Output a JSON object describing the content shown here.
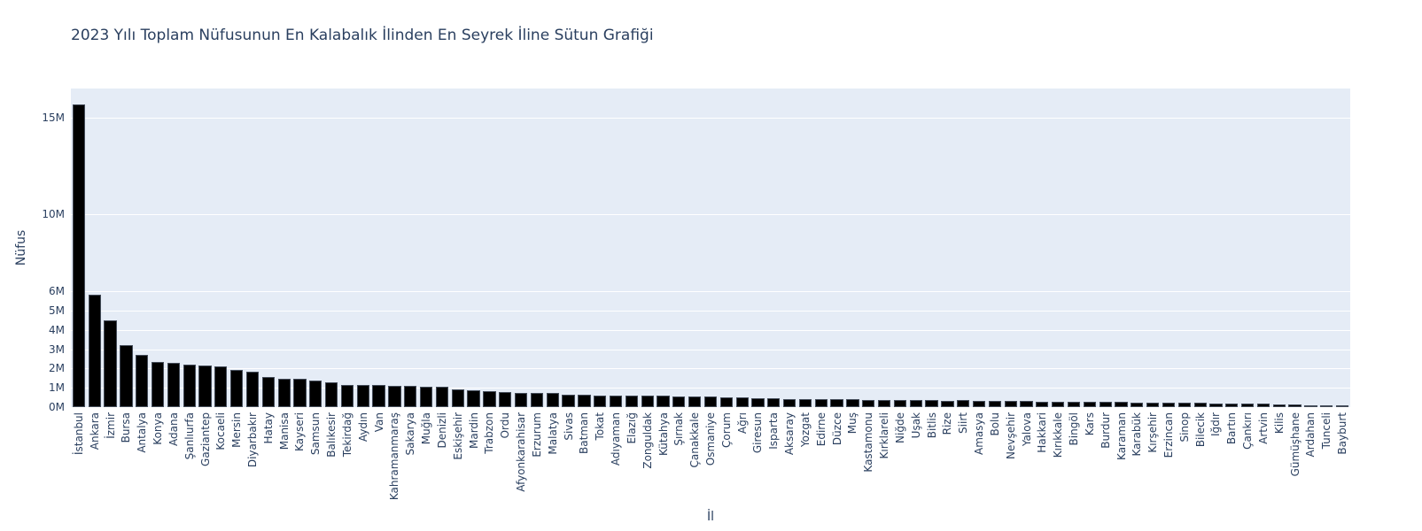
{
  "chart_data": {
    "type": "bar",
    "title": "2023 Yılı Toplam Nüfusunun En Kalabalık İlinden En Seyrek İline Sütun Grafiği",
    "xlabel": "İl",
    "ylabel": "Nüfus",
    "ylim": [
      0,
      16500000
    ],
    "y_ticks": [
      {
        "value": 0,
        "label": "0M"
      },
      {
        "value": 1000000,
        "label": "1M"
      },
      {
        "value": 2000000,
        "label": "2M"
      },
      {
        "value": 3000000,
        "label": "3M"
      },
      {
        "value": 4000000,
        "label": "4M"
      },
      {
        "value": 5000000,
        "label": "5M"
      },
      {
        "value": 6000000,
        "label": "6M"
      },
      {
        "value": 10000000,
        "label": "10M"
      },
      {
        "value": 15000000,
        "label": "15M"
      }
    ],
    "grid": true,
    "bar_color": "#000000",
    "plot_bgcolor": "#e5ecf6",
    "categories": [
      "İstanbul",
      "Ankara",
      "İzmir",
      "Bursa",
      "Antalya",
      "Konya",
      "Adana",
      "Şanlıurfa",
      "Gaziantep",
      "Kocaeli",
      "Mersin",
      "Diyarbakır",
      "Hatay",
      "Manisa",
      "Kayseri",
      "Samsun",
      "Balıkesir",
      "Tekirdağ",
      "Aydın",
      "Van",
      "Kahramanmaraş",
      "Sakarya",
      "Muğla",
      "Denizli",
      "Eskişehir",
      "Mardin",
      "Trabzon",
      "Ordu",
      "Afyonkarahisar",
      "Erzurum",
      "Malatya",
      "Sivas",
      "Batman",
      "Tokat",
      "Adıyaman",
      "Elazığ",
      "Zonguldak",
      "Kütahya",
      "Şırnak",
      "Çanakkale",
      "Osmaniye",
      "Çorum",
      "Ağrı",
      "Giresun",
      "Isparta",
      "Aksaray",
      "Yozgat",
      "Edirne",
      "Düzce",
      "Muş",
      "Kastamonu",
      "Kırklareli",
      "Niğde",
      "Uşak",
      "Bitlis",
      "Rize",
      "Siirt",
      "Amasya",
      "Bolu",
      "Nevşehir",
      "Yalova",
      "Hakkari",
      "Kırıkkale",
      "Bingöl",
      "Kars",
      "Burdur",
      "Karaman",
      "Karabük",
      "Kırşehir",
      "Erzincan",
      "Sinop",
      "Bilecik",
      "Iğdır",
      "Bartın",
      "Çankırı",
      "Artvin",
      "Kilis",
      "Gümüşhane",
      "Ardahan",
      "Tunceli",
      "Bayburt"
    ],
    "values": [
      15655924,
      5803482,
      4479525,
      3214571,
      2696249,
      2320241,
      2270298,
      2213964,
      2164134,
      2102907,
      1916432,
      1818133,
      1544640,
      1475353,
      1445683,
      1377546,
      1276096,
      1167059,
      1148241,
      1127612,
      1116618,
      1098115,
      1066736,
      1059082,
      915418,
      888874,
      822270,
      763190,
      751344,
      749993,
      742725,
      634924,
      634491,
      596454,
      610484,
      604411,
      588510,
      580701,
      570826,
      568966,
      559405,
      524130,
      510626,
      450862,
      445325,
      433055,
      418500,
      413903,
      409865,
      399202,
      378115,
      369347,
      365419,
      375454,
      359687,
      344016,
      349720,
      339529,
      320824,
      310011,
      304780,
      287625,
      278749,
      285655,
      274829,
      273716,
      260838,
      249287,
      244519,
      239223,
      219733,
      228673,
      203594,
      203351,
      196515,
      169403,
      155179,
      144544,
      91354,
      89317,
      86047
    ]
  },
  "title": "2023 Yılı Toplam Nüfusunun En Kalabalık İlinden En Seyrek İline Sütun Grafiği",
  "x_axis_title": "İl",
  "y_axis_title": "Nüfus"
}
